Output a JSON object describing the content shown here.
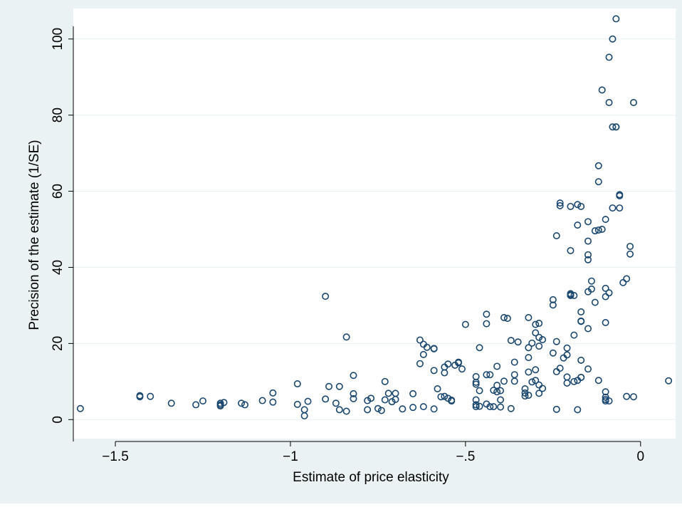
{
  "chart_data": {
    "type": "scatter",
    "title": "",
    "xlabel": "Estimate of price elasticity",
    "ylabel": "Precision of the estimate (1/SE)",
    "xlim": [
      -1.62,
      0.1
    ],
    "ylim": [
      -5,
      108
    ],
    "x_ticks": [
      -1.5,
      -1,
      -0.5,
      0
    ],
    "x_tick_labels": [
      "−1.5",
      "−1",
      "−.5",
      "0"
    ],
    "y_ticks": [
      0,
      20,
      40,
      60,
      80,
      100
    ],
    "y_tick_labels": [
      "0",
      "20",
      "40",
      "60",
      "80",
      "100"
    ],
    "grid": "horizontal",
    "colors": {
      "outer_background": "#eaf2f3",
      "plot_background": "#ffffff",
      "gridline": "#eaf2f3",
      "axis": "#000000",
      "marker": "#1a476f"
    },
    "points": [
      [
        -1.6,
        2.9
      ],
      [
        -1.43,
        6.3
      ],
      [
        -1.43,
        6.0
      ],
      [
        -1.4,
        6.1
      ],
      [
        -1.34,
        4.3
      ],
      [
        -1.27,
        3.9
      ],
      [
        -1.25,
        4.9
      ],
      [
        -1.2,
        3.9
      ],
      [
        -1.2,
        4.3
      ],
      [
        -1.2,
        3.6
      ],
      [
        -1.19,
        4.5
      ],
      [
        -1.14,
        4.3
      ],
      [
        -1.13,
        3.9
      ],
      [
        -1.08,
        5.0
      ],
      [
        -1.05,
        4.6
      ],
      [
        -1.05,
        7.0
      ],
      [
        -0.98,
        9.4
      ],
      [
        -0.98,
        4.0
      ],
      [
        -0.96,
        1.0
      ],
      [
        -0.96,
        2.6
      ],
      [
        -0.95,
        4.8
      ],
      [
        -0.9,
        5.4
      ],
      [
        -0.9,
        32.4
      ],
      [
        -0.89,
        8.7
      ],
      [
        -0.87,
        4.3
      ],
      [
        -0.86,
        8.7
      ],
      [
        -0.86,
        2.6
      ],
      [
        -0.84,
        2.2
      ],
      [
        -0.84,
        21.7
      ],
      [
        -0.82,
        11.6
      ],
      [
        -0.82,
        6.8
      ],
      [
        -0.82,
        5.5
      ],
      [
        -0.78,
        5.0
      ],
      [
        -0.77,
        5.6
      ],
      [
        -0.78,
        2.6
      ],
      [
        -0.75,
        2.9
      ],
      [
        -0.74,
        2.4
      ],
      [
        -0.73,
        10.0
      ],
      [
        -0.73,
        5.2
      ],
      [
        -0.72,
        6.9
      ],
      [
        -0.71,
        4.7
      ],
      [
        -0.7,
        6.9
      ],
      [
        -0.7,
        5.3
      ],
      [
        -0.68,
        2.8
      ],
      [
        -0.65,
        3.2
      ],
      [
        -0.65,
        6.8
      ],
      [
        -0.63,
        14.7
      ],
      [
        -0.63,
        20.9
      ],
      [
        -0.62,
        19.8
      ],
      [
        -0.62,
        17.1
      ],
      [
        -0.62,
        3.4
      ],
      [
        -0.61,
        19.0
      ],
      [
        -0.59,
        18.6
      ],
      [
        -0.59,
        18.7
      ],
      [
        -0.59,
        12.9
      ],
      [
        -0.59,
        2.8
      ],
      [
        -0.58,
        8.1
      ],
      [
        -0.57,
        6.0
      ],
      [
        -0.56,
        13.8
      ],
      [
        -0.56,
        12.3
      ],
      [
        -0.56,
        6.1
      ],
      [
        -0.55,
        5.6
      ],
      [
        -0.55,
        14.6
      ],
      [
        -0.54,
        5.1
      ],
      [
        -0.54,
        4.9
      ],
      [
        -0.53,
        14.3
      ],
      [
        -0.52,
        15.1
      ],
      [
        -0.52,
        14.9
      ],
      [
        -0.51,
        13.3
      ],
      [
        -0.5,
        25.0
      ],
      [
        -0.47,
        11.3
      ],
      [
        -0.47,
        9.3
      ],
      [
        -0.47,
        9.8
      ],
      [
        -0.47,
        5.2
      ],
      [
        -0.47,
        3.4
      ],
      [
        -0.47,
        3.9
      ],
      [
        -0.46,
        3.5
      ],
      [
        -0.46,
        7.6
      ],
      [
        -0.46,
        18.9
      ],
      [
        -0.44,
        11.8
      ],
      [
        -0.44,
        27.7
      ],
      [
        -0.44,
        25.2
      ],
      [
        -0.44,
        4.1
      ],
      [
        -0.43,
        11.8
      ],
      [
        -0.43,
        3.4
      ],
      [
        -0.42,
        7.7
      ],
      [
        -0.42,
        3.4
      ],
      [
        -0.41,
        7.3
      ],
      [
        -0.41,
        9.0
      ],
      [
        -0.41,
        14.0
      ],
      [
        -0.4,
        5.2
      ],
      [
        -0.4,
        7.6
      ],
      [
        -0.4,
        3.3
      ],
      [
        -0.39,
        10.1
      ],
      [
        -0.39,
        26.8
      ],
      [
        -0.38,
        26.6
      ],
      [
        -0.37,
        20.8
      ],
      [
        -0.37,
        2.9
      ],
      [
        -0.36,
        10.1
      ],
      [
        -0.36,
        11.8
      ],
      [
        -0.36,
        15.1
      ],
      [
        -0.35,
        20.4
      ],
      [
        -0.33,
        6.2
      ],
      [
        -0.33,
        7.0
      ],
      [
        -0.33,
        8.1
      ],
      [
        -0.32,
        6.4
      ],
      [
        -0.32,
        16.3
      ],
      [
        -0.32,
        18.9
      ],
      [
        -0.32,
        26.8
      ],
      [
        -0.32,
        12.5
      ],
      [
        -0.31,
        20.1
      ],
      [
        -0.31,
        9.9
      ],
      [
        -0.3,
        10.3
      ],
      [
        -0.3,
        25.0
      ],
      [
        -0.3,
        22.8
      ],
      [
        -0.3,
        13.1
      ],
      [
        -0.29,
        9.1
      ],
      [
        -0.29,
        6.9
      ],
      [
        -0.29,
        19.3
      ],
      [
        -0.29,
        21.6
      ],
      [
        -0.29,
        25.3
      ],
      [
        -0.28,
        8.2
      ],
      [
        -0.28,
        21.0
      ],
      [
        -0.25,
        17.5
      ],
      [
        -0.25,
        30.1
      ],
      [
        -0.25,
        31.5
      ],
      [
        -0.24,
        12.6
      ],
      [
        -0.24,
        2.7
      ],
      [
        -0.24,
        48.3
      ],
      [
        -0.24,
        20.5
      ],
      [
        -0.23,
        13.5
      ],
      [
        -0.23,
        56.9
      ],
      [
        -0.23,
        56.2
      ],
      [
        -0.22,
        16.2
      ],
      [
        -0.21,
        17.0
      ],
      [
        -0.21,
        18.8
      ],
      [
        -0.21,
        9.6
      ],
      [
        -0.21,
        11.2
      ],
      [
        -0.2,
        44.4
      ],
      [
        -0.2,
        56.0
      ],
      [
        -0.2,
        32.8
      ],
      [
        -0.2,
        33.1
      ],
      [
        -0.2,
        32.6
      ],
      [
        -0.19,
        10.0
      ],
      [
        -0.19,
        32.6
      ],
      [
        -0.19,
        22.2
      ],
      [
        -0.18,
        56.5
      ],
      [
        -0.18,
        51.1
      ],
      [
        -0.18,
        10.3
      ],
      [
        -0.18,
        2.6
      ],
      [
        -0.17,
        11.1
      ],
      [
        -0.17,
        11.1
      ],
      [
        -0.17,
        15.6
      ],
      [
        -0.17,
        25.8
      ],
      [
        -0.17,
        25.9
      ],
      [
        -0.17,
        28.3
      ],
      [
        -0.17,
        56.0
      ],
      [
        -0.15,
        13.3
      ],
      [
        -0.15,
        23.9
      ],
      [
        -0.15,
        33.6
      ],
      [
        -0.15,
        42.0
      ],
      [
        -0.15,
        43.3
      ],
      [
        -0.15,
        46.9
      ],
      [
        -0.15,
        52.0
      ],
      [
        -0.14,
        34.3
      ],
      [
        -0.14,
        36.4
      ],
      [
        -0.13,
        30.8
      ],
      [
        -0.13,
        49.6
      ],
      [
        -0.12,
        49.8
      ],
      [
        -0.12,
        62.5
      ],
      [
        -0.12,
        66.7
      ],
      [
        -0.12,
        10.3
      ],
      [
        -0.11,
        50.0
      ],
      [
        -0.11,
        86.6
      ],
      [
        -0.1,
        5.3
      ],
      [
        -0.1,
        4.9
      ],
      [
        -0.1,
        5.9
      ],
      [
        -0.1,
        7.3
      ],
      [
        -0.1,
        25.5
      ],
      [
        -0.1,
        34.5
      ],
      [
        -0.1,
        32.3
      ],
      [
        -0.1,
        52.6
      ],
      [
        -0.09,
        33.3
      ],
      [
        -0.09,
        83.3
      ],
      [
        -0.09,
        95.2
      ],
      [
        -0.09,
        4.9
      ],
      [
        -0.08,
        55.6
      ],
      [
        -0.08,
        76.9
      ],
      [
        -0.08,
        100.0
      ],
      [
        -0.07,
        76.9
      ],
      [
        -0.07,
        76.9
      ],
      [
        -0.07,
        105.3
      ],
      [
        -0.06,
        55.6
      ],
      [
        -0.06,
        58.8
      ],
      [
        -0.06,
        59.1
      ],
      [
        -0.05,
        36.0
      ],
      [
        -0.04,
        37.0
      ],
      [
        -0.04,
        6.1
      ],
      [
        -0.03,
        43.5
      ],
      [
        -0.03,
        45.5
      ],
      [
        -0.02,
        83.3
      ],
      [
        -0.02,
        6.0
      ],
      [
        0.08,
        10.2
      ]
    ]
  }
}
